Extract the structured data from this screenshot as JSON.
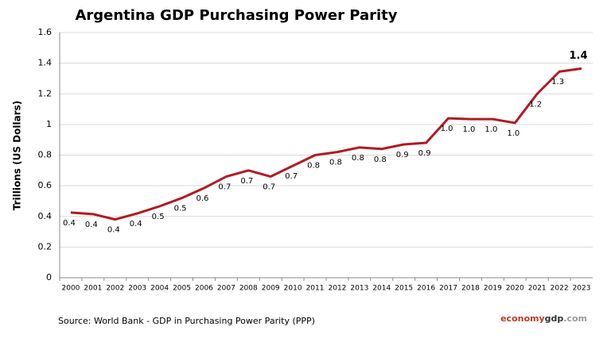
{
  "chart_data": {
    "type": "line",
    "title": "Argentina GDP Purchasing Power Parity",
    "y_axis_label": "Trillions (US Dollars)",
    "source": "Source:  World Bank -  GDP  in Purchasing Power Parity (PPP)",
    "brand": [
      "economy",
      "gdp",
      ".com"
    ],
    "categories": [
      "2000",
      "2001",
      "2002",
      "2003",
      "2004",
      "2005",
      "2006",
      "2007",
      "2008",
      "2009",
      "2010",
      "2011",
      "2012",
      "2013",
      "2014",
      "2015",
      "2016",
      "2017",
      "2018",
      "2019",
      "2020",
      "2021",
      "2022",
      "2023"
    ],
    "series": [
      {
        "name": "GDP PPP",
        "color": "#b11a22",
        "values": [
          0.425,
          0.415,
          0.38,
          0.42,
          0.466,
          0.52,
          0.585,
          0.66,
          0.7,
          0.66,
          0.73,
          0.8,
          0.82,
          0.85,
          0.84,
          0.87,
          0.88,
          1.04,
          1.035,
          1.035,
          1.01,
          1.2,
          1.345,
          1.365
        ],
        "value_labels": [
          "0.4",
          "0.4",
          "0.4",
          "0.4",
          "0.5",
          "0.5",
          "0.6",
          "0.7",
          "0.7",
          "0.7",
          "0.7",
          "0.8",
          "0.8",
          "0.8",
          "0.8",
          "0.9",
          "0.9",
          "1.0",
          "1.0",
          "1.0",
          "1.0",
          "1.2",
          "1.3",
          "1.4"
        ]
      }
    ],
    "ylim": [
      0,
      1.6
    ],
    "yticks": [
      0,
      0.2,
      0.4,
      0.6,
      0.8,
      1,
      1.2,
      1.4,
      1.6
    ],
    "grid": true
  }
}
